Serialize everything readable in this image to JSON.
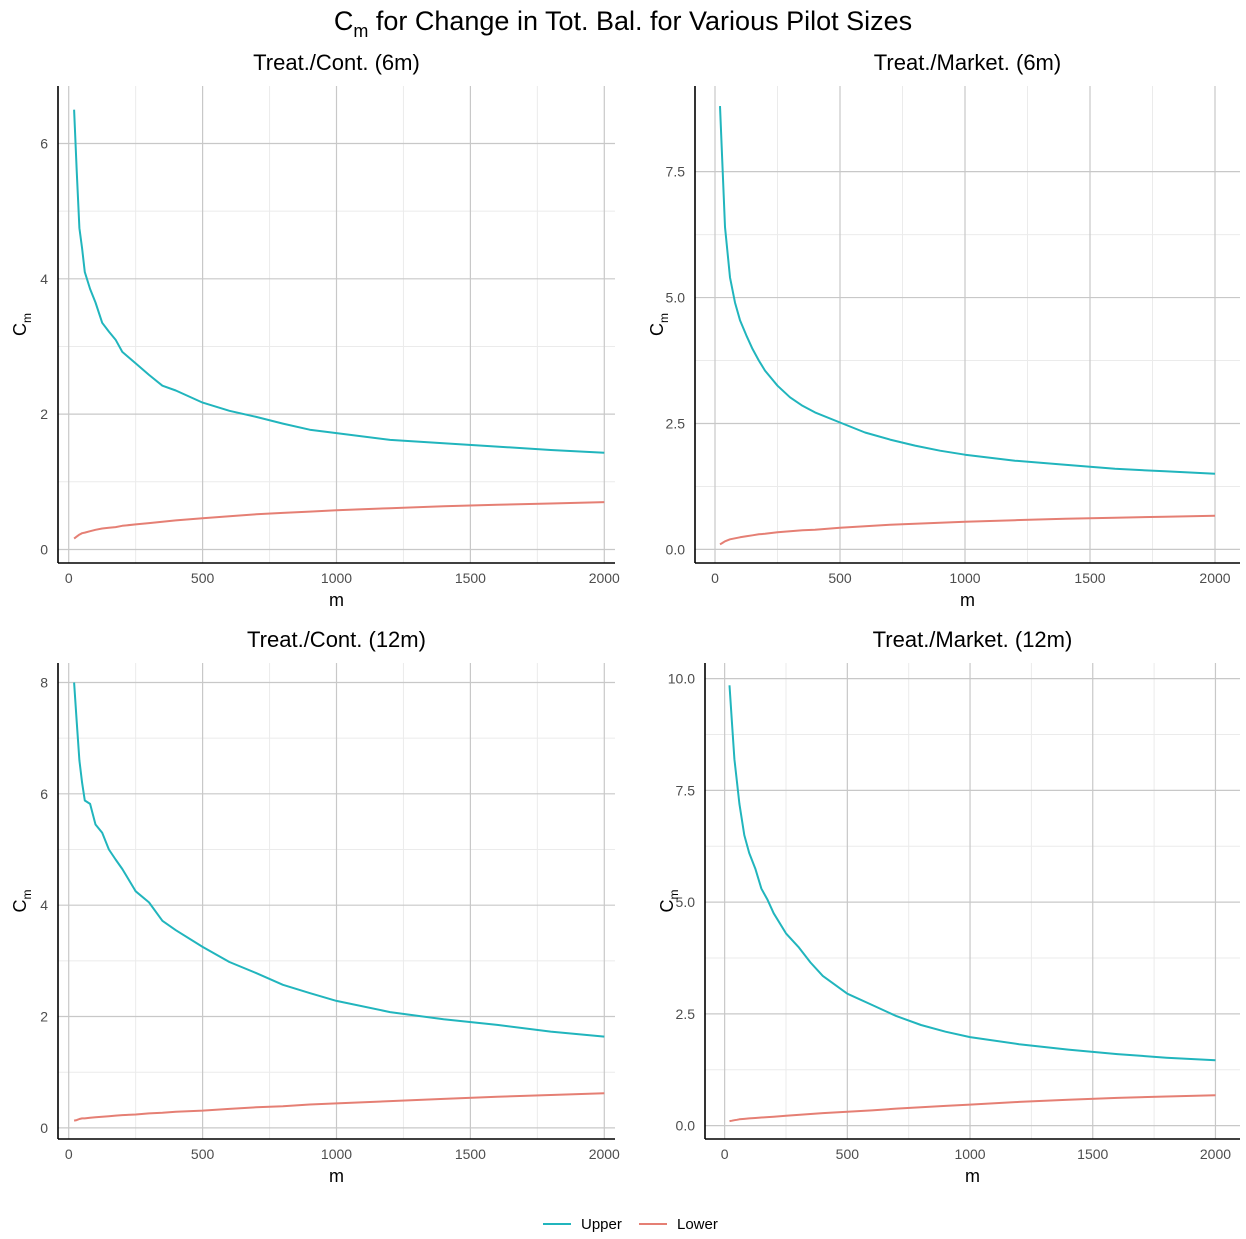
{
  "figure": {
    "title_main": "C",
    "title_sub": "m",
    "title_rest": " for Change in Tot. Bal. for Various Pilot Sizes"
  },
  "legend": {
    "items": [
      {
        "label": "Upper",
        "color": "#21b5bd"
      },
      {
        "label": "Lower",
        "color": "#e57f74"
      }
    ]
  },
  "chart_data": [
    {
      "type": "line",
      "title": "Treat./Cont. (6m)",
      "xlabel": "m",
      "ylabel_main": "C",
      "ylabel_sub": "m",
      "xlim": [
        -40,
        2040
      ],
      "ylim": [
        -0.2,
        6.85
      ],
      "xticks": [
        0,
        500,
        1000,
        1500,
        2000
      ],
      "yticks": [
        0,
        2,
        4,
        6
      ],
      "ytick_labels": [
        "0",
        "2",
        "4",
        "6"
      ],
      "x": [
        20,
        30,
        40,
        50,
        60,
        80,
        100,
        125,
        150,
        175,
        200,
        250,
        300,
        350,
        400,
        500,
        600,
        700,
        800,
        900,
        1000,
        1200,
        1400,
        1600,
        1800,
        2000
      ],
      "series": [
        {
          "name": "Upper",
          "color": "#21b5bd",
          "values": [
            6.5,
            5.6,
            4.75,
            4.45,
            4.1,
            3.85,
            3.65,
            3.35,
            3.22,
            3.1,
            2.92,
            2.75,
            2.58,
            2.42,
            2.35,
            2.17,
            2.05,
            1.96,
            1.86,
            1.77,
            1.72,
            1.62,
            1.57,
            1.52,
            1.47,
            1.43
          ]
        },
        {
          "name": "Lower",
          "color": "#e57f74",
          "values": [
            0.16,
            0.19,
            0.22,
            0.24,
            0.25,
            0.27,
            0.29,
            0.31,
            0.32,
            0.33,
            0.35,
            0.37,
            0.39,
            0.41,
            0.43,
            0.46,
            0.49,
            0.52,
            0.54,
            0.56,
            0.58,
            0.61,
            0.64,
            0.66,
            0.68,
            0.7
          ]
        }
      ]
    },
    {
      "type": "line",
      "title": "Treat./Market. (6m)",
      "xlabel": "m",
      "ylabel_main": "C",
      "ylabel_sub": "m",
      "xlim": [
        -80,
        2100
      ],
      "ylim": [
        -0.27,
        9.2
      ],
      "xticks": [
        0,
        500,
        1000,
        1500,
        2000
      ],
      "yticks": [
        0,
        2.5,
        5,
        7.5
      ],
      "ytick_labels": [
        "0.0",
        "2.5",
        "5.0",
        "7.5"
      ],
      "x": [
        20,
        30,
        40,
        50,
        60,
        80,
        100,
        125,
        150,
        175,
        200,
        250,
        300,
        350,
        400,
        500,
        600,
        700,
        800,
        900,
        1000,
        1200,
        1400,
        1600,
        1800,
        2000
      ],
      "series": [
        {
          "name": "Upper",
          "color": "#21b5bd",
          "values": [
            8.8,
            7.6,
            6.4,
            5.9,
            5.4,
            4.9,
            4.55,
            4.25,
            3.98,
            3.75,
            3.55,
            3.25,
            3.02,
            2.85,
            2.72,
            2.52,
            2.32,
            2.18,
            2.06,
            1.96,
            1.88,
            1.76,
            1.68,
            1.6,
            1.55,
            1.5
          ]
        },
        {
          "name": "Lower",
          "color": "#e57f74",
          "values": [
            0.1,
            0.13,
            0.16,
            0.18,
            0.2,
            0.22,
            0.24,
            0.26,
            0.28,
            0.3,
            0.31,
            0.34,
            0.36,
            0.38,
            0.39,
            0.43,
            0.46,
            0.49,
            0.51,
            0.53,
            0.55,
            0.58,
            0.61,
            0.63,
            0.65,
            0.67
          ]
        }
      ]
    },
    {
      "type": "line",
      "title": "Treat./Cont. (12m)",
      "xlabel": "m",
      "ylabel_main": "C",
      "ylabel_sub": "m",
      "xlim": [
        -40,
        2040
      ],
      "ylim": [
        -0.2,
        8.35
      ],
      "xticks": [
        0,
        500,
        1000,
        1500,
        2000
      ],
      "yticks": [
        0,
        2,
        4,
        6,
        8
      ],
      "ytick_labels": [
        "0",
        "2",
        "4",
        "6",
        "8"
      ],
      "x": [
        20,
        30,
        40,
        50,
        60,
        80,
        100,
        125,
        150,
        175,
        200,
        250,
        300,
        350,
        400,
        500,
        600,
        700,
        800,
        900,
        1000,
        1200,
        1400,
        1600,
        1800,
        2000
      ],
      "series": [
        {
          "name": "Upper",
          "color": "#21b5bd",
          "values": [
            8.0,
            7.3,
            6.6,
            6.2,
            5.88,
            5.82,
            5.45,
            5.3,
            5.0,
            4.82,
            4.65,
            4.25,
            4.05,
            3.72,
            3.55,
            3.25,
            2.98,
            2.78,
            2.57,
            2.42,
            2.28,
            2.08,
            1.95,
            1.85,
            1.73,
            1.64
          ]
        },
        {
          "name": "Lower",
          "color": "#e57f74",
          "values": [
            0.13,
            0.14,
            0.16,
            0.17,
            0.17,
            0.18,
            0.19,
            0.2,
            0.21,
            0.22,
            0.23,
            0.24,
            0.26,
            0.27,
            0.29,
            0.31,
            0.34,
            0.37,
            0.39,
            0.42,
            0.44,
            0.48,
            0.52,
            0.56,
            0.59,
            0.62
          ]
        }
      ]
    },
    {
      "type": "line",
      "title": "Treat./Market. (12m)",
      "xlabel": "m",
      "ylabel_main": "C",
      "ylabel_sub": "m",
      "xlim": [
        -80,
        2100
      ],
      "ylim": [
        -0.3,
        10.35
      ],
      "xticks": [
        0,
        500,
        1000,
        1500,
        2000
      ],
      "yticks": [
        0,
        2.5,
        5,
        7.5,
        10
      ],
      "ytick_labels": [
        "0.0",
        "2.5",
        "5.0",
        "7.5",
        "10.0"
      ],
      "x": [
        20,
        30,
        40,
        50,
        60,
        80,
        100,
        125,
        150,
        175,
        200,
        250,
        300,
        350,
        400,
        500,
        600,
        700,
        800,
        900,
        1000,
        1200,
        1400,
        1600,
        1800,
        2000
      ],
      "series": [
        {
          "name": "Upper",
          "color": "#21b5bd",
          "values": [
            9.85,
            9.0,
            8.2,
            7.7,
            7.2,
            6.5,
            6.1,
            5.75,
            5.3,
            5.05,
            4.75,
            4.3,
            4.0,
            3.65,
            3.35,
            2.95,
            2.7,
            2.45,
            2.25,
            2.1,
            1.98,
            1.82,
            1.7,
            1.6,
            1.52,
            1.46
          ]
        },
        {
          "name": "Lower",
          "color": "#e57f74",
          "values": [
            0.1,
            0.11,
            0.12,
            0.13,
            0.14,
            0.15,
            0.16,
            0.17,
            0.18,
            0.19,
            0.2,
            0.22,
            0.24,
            0.26,
            0.28,
            0.31,
            0.34,
            0.38,
            0.41,
            0.44,
            0.47,
            0.53,
            0.58,
            0.62,
            0.65,
            0.68
          ]
        }
      ]
    }
  ]
}
